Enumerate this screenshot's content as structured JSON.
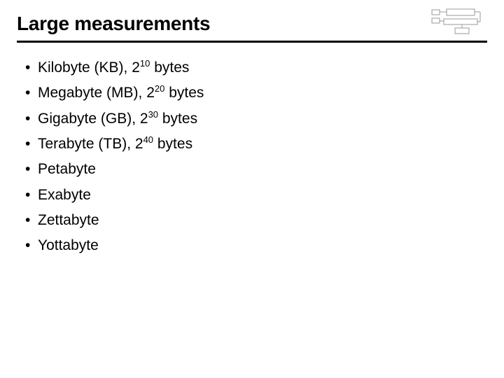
{
  "title": "Large measurements",
  "title_fontsize": 28,
  "title_weight": 700,
  "rule_color": "#000000",
  "rule_width": 3,
  "background_color": "#ffffff",
  "text_color": "#000000",
  "item_fontsize": 21,
  "bullet_char": "•",
  "diagram": {
    "type": "block-diagram-thumbnail",
    "stroke": "#888888",
    "fill": "#ffffff",
    "width": 82,
    "height": 40
  },
  "items": [
    {
      "prefix": "Kilobyte (KB), 2",
      "exp": "10",
      "suffix": " bytes"
    },
    {
      "prefix": "Megabyte (MB), 2",
      "exp": "20",
      "suffix": " bytes"
    },
    {
      "prefix": "Gigabyte (GB), 2",
      "exp": "30",
      "suffix": " bytes"
    },
    {
      "prefix": "Terabyte (TB), 2",
      "exp": "40",
      "suffix": " bytes"
    },
    {
      "prefix": "Petabyte",
      "exp": "",
      "suffix": ""
    },
    {
      "prefix": "Exabyte",
      "exp": "",
      "suffix": ""
    },
    {
      "prefix": "Zettabyte",
      "exp": "",
      "suffix": ""
    },
    {
      "prefix": "Yottabyte",
      "exp": "",
      "suffix": ""
    }
  ]
}
